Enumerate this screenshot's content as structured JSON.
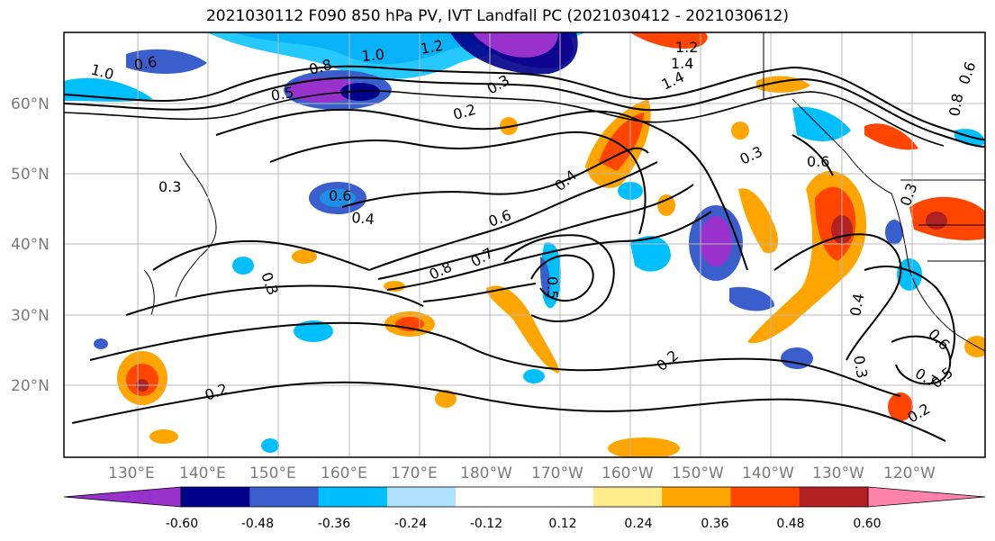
{
  "title": "2021030112 F090 850 hPa PV, IVT Landfall PC (2021030412 - 2021030612)",
  "lat_labels": [
    "60°N",
    "50°N",
    "40°N",
    "30°N",
    "20°N"
  ],
  "lon_labels": [
    "130°E",
    "140°E",
    "150°E",
    "160°E",
    "170°E",
    "180°W",
    "170°W",
    "160°W",
    "150°W",
    "140°W",
    "130°W",
    "120°W"
  ],
  "colorbar": {
    "colors": [
      "#9932cc",
      "#00008b",
      "#3a5fcd",
      "#00bfff",
      "#b0e2ff",
      "#ffffff",
      "#ffffff",
      "#ffec8b",
      "#ffa500",
      "#ff4500",
      "#b22222",
      "#ff82ab"
    ],
    "tick_labels": [
      "-0.60",
      "-0.48",
      "-0.36",
      "-0.24",
      "-0.12",
      "0.12",
      "0.24",
      "0.36",
      "0.48",
      "0.60"
    ]
  },
  "contour_labels": [
    {
      "text": "1.0"
    },
    {
      "text": "0.6"
    },
    {
      "text": "0.8"
    },
    {
      "text": "1.0"
    },
    {
      "text": "1.2"
    },
    {
      "text": "1.4"
    },
    {
      "text": "1.2"
    },
    {
      "text": "1.4"
    },
    {
      "text": "0.3"
    },
    {
      "text": "0.2"
    },
    {
      "text": "0.3"
    },
    {
      "text": "0.4"
    },
    {
      "text": "0.6"
    },
    {
      "text": "0.8"
    },
    {
      "text": "0.7"
    },
    {
      "text": "0.6"
    },
    {
      "text": "0.4"
    },
    {
      "text": "0.3"
    },
    {
      "text": "0.2"
    },
    {
      "text": "0.2"
    },
    {
      "text": "0.3"
    },
    {
      "text": "0.4"
    },
    {
      "text": "0.3"
    },
    {
      "text": "0.5"
    },
    {
      "text": "0.6"
    },
    {
      "text": "0.7"
    },
    {
      "text": "0.5"
    },
    {
      "text": "0.2"
    },
    {
      "text": "0.3"
    },
    {
      "text": "0.6"
    },
    {
      "text": "0.8"
    },
    {
      "text": "0.6"
    },
    {
      "text": "0.5"
    }
  ]
}
